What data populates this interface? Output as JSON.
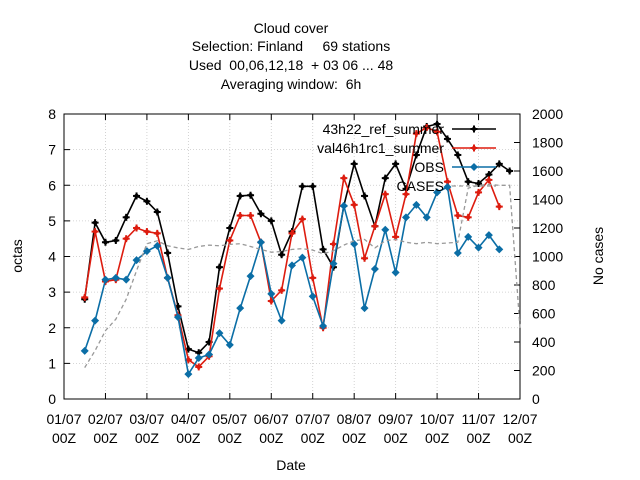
{
  "chart_data": {
    "type": "line",
    "title_lines": [
      "Cloud cover",
      "Selection: Finland     69 stations",
      "Used  00,06,12,18  + 03 06 ... 48",
      "Averaging window:  6h"
    ],
    "xlabel": "Date",
    "ylabel": "octas",
    "y2label": "No cases",
    "ylim": [
      0,
      8
    ],
    "y2lim": [
      0,
      2000
    ],
    "yticks": [
      "0",
      "1",
      "2",
      "3",
      "4",
      "5",
      "6",
      "7",
      "8"
    ],
    "y2ticks": [
      "0",
      "200",
      "400",
      "600",
      "800",
      "1000",
      "1200",
      "1400",
      "1600",
      "1800",
      "2000"
    ],
    "xticks": [
      {
        "date": "01/07",
        "hour": "00Z"
      },
      {
        "date": "02/07",
        "hour": "00Z"
      },
      {
        "date": "03/07",
        "hour": "00Z"
      },
      {
        "date": "04/07",
        "hour": "00Z"
      },
      {
        "date": "05/07",
        "hour": "00Z"
      },
      {
        "date": "06/07",
        "hour": "00Z"
      },
      {
        "date": "07/07",
        "hour": "00Z"
      },
      {
        "date": "08/07",
        "hour": "00Z"
      },
      {
        "date": "09/07",
        "hour": "00Z"
      },
      {
        "date": "10/07",
        "hour": "00Z"
      },
      {
        "date": "11/07",
        "hour": "00Z"
      },
      {
        "date": "12/07",
        "hour": "00Z"
      }
    ],
    "x_units": "days since 01/07 00Z",
    "xlim": [
      0,
      11
    ],
    "grid": true,
    "legend_position": "top-right",
    "x": [
      0.5,
      0.75,
      1.0,
      1.25,
      1.5,
      1.75,
      2.0,
      2.25,
      2.5,
      2.75,
      3.0,
      3.25,
      3.5,
      3.75,
      4.0,
      4.25,
      4.5,
      4.75,
      5.0,
      5.25,
      5.5,
      5.75,
      6.0,
      6.25,
      6.5,
      6.75,
      7.0,
      7.25,
      7.5,
      7.75,
      8.0,
      8.25,
      8.5,
      8.75,
      9.0,
      9.25,
      9.5,
      9.75,
      10.0,
      10.25,
      10.5,
      10.75,
      11.0
    ],
    "series": [
      {
        "name": "43h22_ref_summer",
        "color": "#000000",
        "axis": "y1",
        "marker": "plus",
        "values": [
          2.8,
          4.95,
          4.4,
          4.45,
          5.1,
          5.7,
          5.55,
          5.25,
          4.1,
          2.6,
          1.4,
          1.3,
          1.6,
          3.7,
          4.8,
          5.7,
          5.72,
          5.2,
          5.0,
          4.05,
          4.7,
          5.97,
          5.97,
          4.2,
          3.7,
          5.42,
          6.6,
          5.7,
          4.85,
          6.2,
          6.6,
          5.9,
          6.85,
          7.65,
          7.72,
          7.3,
          6.85,
          6.1,
          6.05,
          6.3,
          6.6,
          6.4,
          null
        ]
      },
      {
        "name": "val46h1rc1_summer",
        "color": "#dd1c0f",
        "axis": "y1",
        "marker": "plus",
        "values": [
          2.85,
          4.7,
          3.3,
          3.35,
          4.5,
          4.8,
          4.7,
          4.65,
          3.4,
          2.35,
          1.1,
          0.9,
          1.2,
          3.1,
          4.45,
          5.15,
          5.15,
          4.4,
          2.75,
          3.05,
          4.65,
          5.05,
          3.4,
          2.0,
          4.35,
          6.2,
          5.45,
          3.95,
          4.85,
          5.75,
          4.55,
          5.75,
          7.45,
          7.62,
          7.5,
          6.1,
          5.15,
          5.1,
          5.8,
          6.15,
          5.4,
          null,
          null
        ]
      },
      {
        "name": "OBS",
        "color": "#0b6ea6",
        "axis": "y1",
        "marker": "diamond",
        "values": [
          1.35,
          2.2,
          3.35,
          3.4,
          3.35,
          3.9,
          4.15,
          4.3,
          3.4,
          2.3,
          0.7,
          1.15,
          1.25,
          1.85,
          1.52,
          2.55,
          3.45,
          4.4,
          2.95,
          2.2,
          3.75,
          3.97,
          2.88,
          2.05,
          3.8,
          5.42,
          4.35,
          2.55,
          3.65,
          4.75,
          3.55,
          5.1,
          5.45,
          5.1,
          5.8,
          5.95,
          4.1,
          4.55,
          4.25,
          4.6,
          4.2,
          null,
          null
        ]
      },
      {
        "name": "CASES",
        "color": "#999999",
        "axis": "y2",
        "dashed": true,
        "values": [
          220,
          340,
          480,
          560,
          700,
          900,
          1090,
          1110,
          1075,
          1060,
          1050,
          1070,
          1080,
          1075,
          1085,
          1090,
          1070,
          1050,
          1030,
          1035,
          1050,
          1055,
          1045,
          1020,
          1040,
          1080,
          1110,
          1120,
          1060,
          1110,
          1120,
          1100,
          1090,
          1100,
          1090,
          1095,
          1100,
          1480,
          1500,
          1505,
          1500,
          1500,
          500
        ]
      }
    ]
  }
}
